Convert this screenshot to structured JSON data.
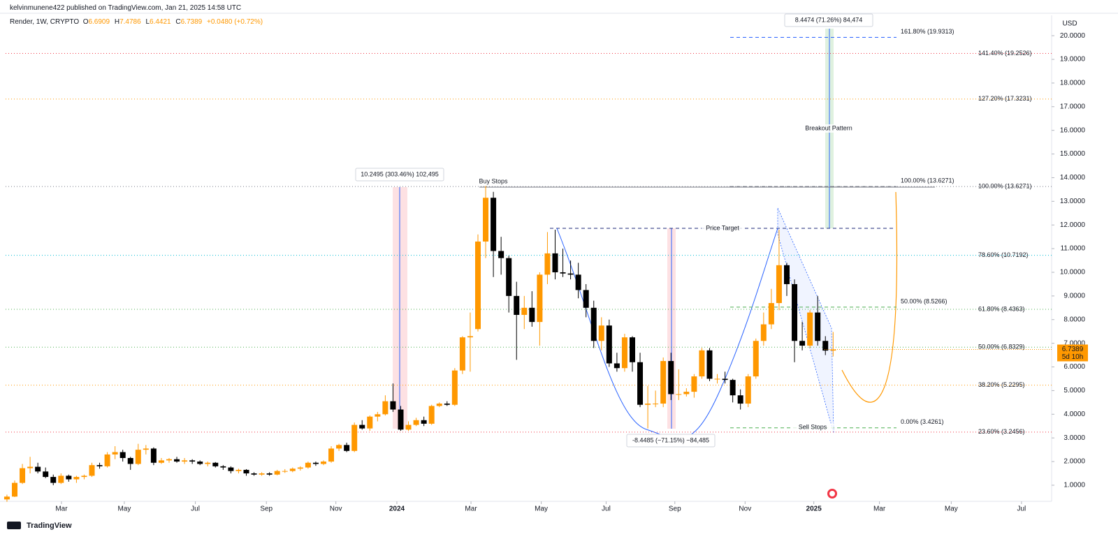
{
  "header": {
    "publisher": "kelvinmunene422 published on TradingView.com, Jan 21, 2025 14:58 UTC",
    "symbol": "Render, 1W, CRYPTO",
    "ohlc_keys": [
      "O",
      "H",
      "L",
      "C"
    ],
    "change": "+0.0480 (+0.72%)"
  },
  "chart_data": {
    "type": "candlestick",
    "up_color": "#ff9800",
    "down_color": "#000000",
    "open": [
      0.4,
      0.52,
      1.1,
      1.72,
      1.78,
      1.58,
      1.35,
      1.1,
      1.4,
      1.25,
      1.35,
      1.4,
      1.85,
      1.8,
      2.3,
      2.4,
      2.15,
      1.9,
      2.5,
      2.55,
      1.95,
      2.05,
      2.1,
      2.0,
      2.05,
      2.0,
      1.9,
      1.95,
      1.8,
      1.75,
      1.6,
      1.65,
      1.5,
      1.45,
      1.5,
      1.45,
      1.6,
      1.6,
      1.7,
      1.75,
      1.95,
      1.9,
      2.0,
      2.55,
      2.7,
      2.45,
      3.55,
      3.4,
      3.9,
      4.0,
      4.55,
      4.2,
      3.35,
      3.55,
      3.75,
      3.6,
      4.35,
      4.45,
      4.4,
      5.85,
      7.25,
      7.6,
      11.3,
      13.15,
      10.9,
      10.6,
      9.0,
      8.2,
      8.5,
      7.9,
      9.9,
      10.8,
      10.0,
      9.95,
      9.9,
      9.25,
      8.5,
      7.1,
      7.75,
      6.15,
      5.95,
      7.25,
      6.2,
      4.4,
      4.45,
      4.45,
      6.25,
      4.85,
      4.85,
      4.95,
      5.6,
      6.7,
      5.5,
      5.5,
      5.45,
      4.8,
      4.45,
      5.6,
      7.1,
      7.8,
      8.7,
      10.3,
      9.5,
      7.1,
      6.9,
      8.3,
      7.1,
      6.6909
    ],
    "high": [
      0.6,
      1.2,
      1.9,
      2.2,
      1.95,
      1.75,
      1.45,
      1.5,
      1.45,
      1.4,
      1.45,
      1.95,
      1.95,
      2.4,
      2.65,
      2.5,
      2.2,
      2.75,
      2.7,
      2.6,
      2.15,
      2.15,
      2.2,
      2.15,
      2.1,
      2.05,
      2.0,
      1.98,
      1.85,
      1.8,
      1.7,
      1.68,
      1.55,
      1.55,
      1.55,
      1.65,
      1.68,
      1.75,
      1.8,
      2.0,
      2.0,
      2.05,
      2.65,
      2.75,
      2.8,
      3.65,
      3.75,
      3.95,
      4.1,
      4.8,
      5.3,
      4.35,
      3.7,
      3.85,
      3.9,
      4.4,
      4.5,
      4.55,
      5.95,
      7.3,
      8.3,
      11.6,
      13.65,
      13.4,
      11.5,
      10.7,
      9.6,
      9.0,
      9.2,
      10.0,
      11.7,
      11.8,
      11.0,
      10.5,
      10.4,
      9.5,
      8.8,
      8.1,
      8.0,
      6.6,
      7.4,
      7.3,
      6.6,
      5.2,
      5.0,
      6.4,
      6.6,
      5.9,
      5.1,
      5.7,
      6.8,
      6.8,
      5.7,
      5.8,
      5.5,
      5.05,
      5.7,
      7.2,
      8.3,
      9.3,
      11.8,
      10.4,
      9.7,
      7.9,
      8.4,
      9.0,
      7.3,
      7.4786
    ],
    "low": [
      0.3,
      0.5,
      1.05,
      1.5,
      1.5,
      1.3,
      1.0,
      1.05,
      1.15,
      1.1,
      1.25,
      1.35,
      1.7,
      1.75,
      2.1,
      2.0,
      1.65,
      1.85,
      2.3,
      1.85,
      1.9,
      1.95,
      1.95,
      1.9,
      1.9,
      1.85,
      1.8,
      1.75,
      1.65,
      1.5,
      1.5,
      1.4,
      1.4,
      1.4,
      1.4,
      1.42,
      1.52,
      1.55,
      1.62,
      1.7,
      1.82,
      1.85,
      1.95,
      2.45,
      2.4,
      2.4,
      3.35,
      3.3,
      3.7,
      3.95,
      4.1,
      3.3,
      3.3,
      3.5,
      3.5,
      3.55,
      4.3,
      4.35,
      4.35,
      5.7,
      5.8,
      7.5,
      10.6,
      9.8,
      9.9,
      8.3,
      6.3,
      7.6,
      7.7,
      6.9,
      9.5,
      9.7,
      9.8,
      9.7,
      8.9,
      8.1,
      6.8,
      6.7,
      6.0,
      5.8,
      5.8,
      5.8,
      4.3,
      3.4,
      4.3,
      4.3,
      4.6,
      4.6,
      4.75,
      4.7,
      5.5,
      5.4,
      5.3,
      5.3,
      4.5,
      4.2,
      4.3,
      5.5,
      6.9,
      7.6,
      8.4,
      9.0,
      6.2,
      6.7,
      6.8,
      6.9,
      6.5,
      6.4421
    ],
    "close": [
      0.52,
      1.1,
      1.72,
      1.78,
      1.58,
      1.35,
      1.1,
      1.4,
      1.25,
      1.35,
      1.4,
      1.85,
      1.8,
      2.3,
      2.4,
      2.15,
      1.9,
      2.5,
      2.55,
      1.95,
      2.05,
      2.1,
      2.0,
      2.05,
      2.0,
      1.9,
      1.95,
      1.8,
      1.75,
      1.6,
      1.65,
      1.5,
      1.45,
      1.5,
      1.45,
      1.6,
      1.6,
      1.7,
      1.75,
      1.95,
      1.9,
      2.0,
      2.55,
      2.7,
      2.45,
      3.55,
      3.4,
      3.9,
      4.0,
      4.55,
      4.2,
      3.35,
      3.55,
      3.75,
      3.6,
      4.35,
      4.45,
      4.4,
      5.85,
      7.25,
      7.3,
      11.3,
      13.15,
      10.9,
      10.6,
      9.0,
      8.2,
      8.5,
      7.9,
      9.9,
      10.8,
      10.0,
      9.95,
      9.9,
      9.25,
      8.5,
      7.1,
      7.75,
      6.15,
      5.95,
      7.25,
      6.2,
      4.4,
      4.45,
      4.45,
      6.25,
      4.85,
      4.85,
      4.95,
      5.6,
      6.7,
      5.5,
      5.5,
      5.45,
      4.8,
      4.45,
      5.6,
      7.1,
      7.8,
      8.7,
      10.3,
      9.5,
      7.1,
      6.9,
      8.3,
      7.1,
      6.69,
      6.7389
    ],
    "xlim": [
      -0.9,
      135.3
    ],
    "xticks": [
      {
        "value": 7.06,
        "label": "Mar"
      },
      {
        "value": 15.2,
        "label": "May"
      },
      {
        "value": 24.4,
        "label": "Jul"
      },
      {
        "value": 33.6,
        "label": "Sep"
      },
      {
        "value": 42.6,
        "label": "Nov"
      },
      {
        "value": 50.5,
        "label": "2024"
      },
      {
        "value": 60.1,
        "label": "Mar"
      },
      {
        "value": 69.2,
        "label": "May"
      },
      {
        "value": 77.6,
        "label": "Jul"
      },
      {
        "value": 86.5,
        "label": "Sep"
      },
      {
        "value": 95.6,
        "label": "Nov"
      },
      {
        "value": 104.5,
        "label": "2025"
      },
      {
        "value": 113.0,
        "label": "Mar"
      },
      {
        "value": 122.3,
        "label": "May"
      },
      {
        "value": 131.4,
        "label": "Jul"
      }
    ],
    "ylim": [
      0.32,
      20.86
    ],
    "yticks": [
      {
        "value": 1,
        "label": "1.0000"
      },
      {
        "value": 2,
        "label": "2.0000"
      },
      {
        "value": 3,
        "label": "3.0000"
      },
      {
        "value": 4,
        "label": "4.0000"
      },
      {
        "value": 5,
        "label": "5.0000"
      },
      {
        "value": 6,
        "label": "6.0000"
      },
      {
        "value": 7,
        "label": "7.0000"
      },
      {
        "value": 8,
        "label": "8.0000"
      },
      {
        "value": 9,
        "label": "9.0000"
      },
      {
        "value": 10,
        "label": "10.0000"
      },
      {
        "value": 11,
        "label": "11.0000"
      },
      {
        "value": 12,
        "label": "12.0000"
      },
      {
        "value": 13,
        "label": "13.0000"
      },
      {
        "value": 14,
        "label": "14.0000"
      },
      {
        "value": 15,
        "label": "15.0000"
      },
      {
        "value": 16,
        "label": "16.0000"
      },
      {
        "value": 17,
        "label": "17.0000"
      },
      {
        "value": 18,
        "label": "18.0000"
      },
      {
        "value": 19,
        "label": "19.0000"
      },
      {
        "value": 20,
        "label": "20.0000"
      }
    ],
    "grid": false,
    "currency": "USD",
    "countdown": "5d 10h",
    "fib_levels": [
      {
        "label": "141.40% (19.2526)",
        "value": 19.2526,
        "color": "#f23645"
      },
      {
        "label": "127.20% (17.3231)",
        "value": 17.3231,
        "color": "#ff9800"
      },
      {
        "label": "100.00% (13.6271)",
        "value": 13.6271,
        "color": "#787b86"
      },
      {
        "label": "78.60% (10.7192)",
        "value": 10.7192,
        "color": "#00bcd4"
      },
      {
        "label": "61.80% (8.4363)",
        "value": 8.4363,
        "color": "#4caf50"
      },
      {
        "label": "50.00% (6.8329)",
        "value": 6.8329,
        "color": "#4caf50"
      },
      {
        "label": "38.20% (5.2295)",
        "value": 5.2295,
        "color": "#ff9800"
      },
      {
        "label": "23.60% (3.2456)",
        "value": 3.2456,
        "color": "#f23645"
      }
    ],
    "fib_levels_2": [
      {
        "label": "161.80% (19.9313)",
        "value": 19.9313,
        "color": "#2962ff"
      },
      {
        "label": "100.00% (13.6271)",
        "value": 13.6271,
        "color": "#787b86"
      },
      {
        "label": "50.00% (8.5266)",
        "value": 8.5266,
        "color": "#4caf50"
      },
      {
        "label": "0.00% (3.4261)",
        "value": 3.4261,
        "color": "#4caf50"
      }
    ],
    "annotations": [
      "10.2495 (303.46%) 102,495",
      "8.4474 (71.26%) 84,474",
      "-8.4485 (−71.15%) −84,485",
      "Buy Stops",
      "Price Target",
      "Breakout Pattern",
      "Sell Stops"
    ]
  },
  "footer": {
    "brand": "TradingView"
  }
}
